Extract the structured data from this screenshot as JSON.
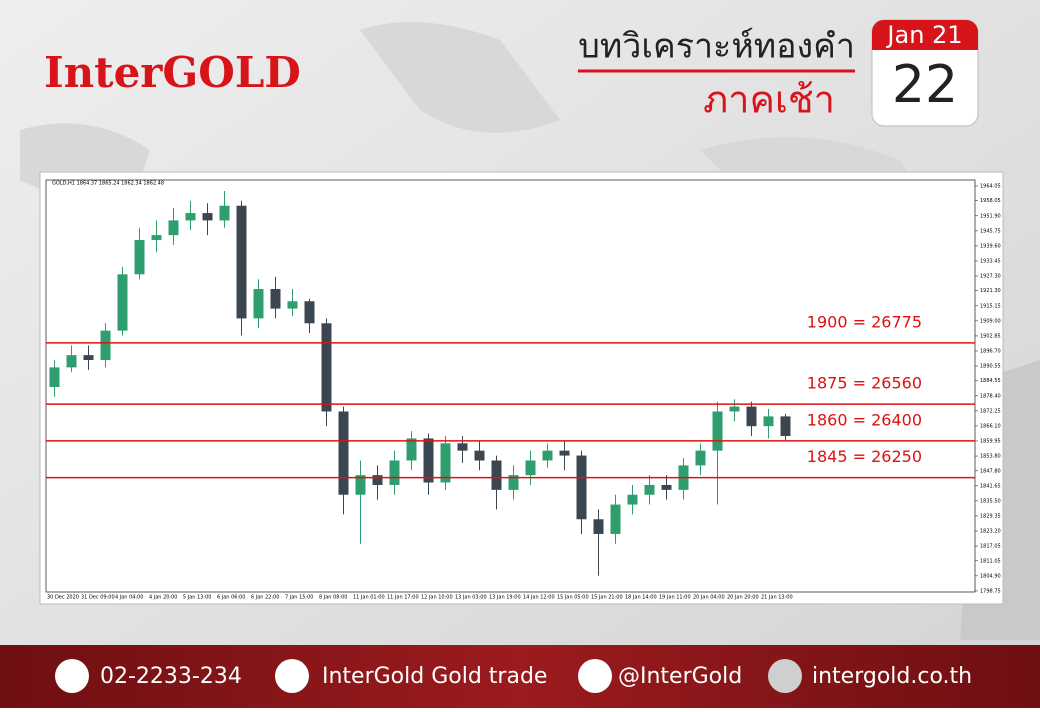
{
  "header": {
    "logo": "InterGOLD",
    "title": "บทวิเคราะห์ทองคำ",
    "subtitle": "ภาคเช้า",
    "month": "Jan 21",
    "day": "22"
  },
  "chart_data": {
    "type": "candlestick",
    "title": "GOLD,H1 1864.37 1865.24 1862.34 1862.48",
    "categories": [
      "30 Dec 2020",
      null,
      "31 Dec 09:00",
      null,
      "4 Jan 04:00",
      null,
      "4 Jan 20:00",
      null,
      "5 Jan 13:00",
      null,
      "6 Jan 06:00",
      null,
      "6 Jan 22:00",
      null,
      "7 Jan 15:00",
      null,
      "8 Jan 08:00",
      null,
      "11 Jan 01:00",
      null,
      "11 Jan 17:00",
      null,
      "12 Jan 10:00",
      null,
      "13 Jan 03:00",
      null,
      "13 Jan 19:00",
      null,
      "14 Jan 12:00",
      null,
      "15 Jan 05:00",
      null,
      "15 Jan 21:00",
      null,
      "18 Jan 14:00",
      null,
      "19 Jan 11:00",
      null,
      "20 Jan 04:00",
      null,
      "20 Jan 20:00",
      null,
      "21 Jan 13:00",
      null
    ],
    "open": [
      1882,
      1890,
      1895,
      1893,
      1905,
      1928,
      1942,
      1944,
      1950,
      1953,
      1950,
      1956,
      1910,
      1922,
      1914,
      1917,
      1908,
      1872,
      1838,
      1846,
      1842,
      1852,
      1861,
      1843,
      1859,
      1856,
      1852,
      1840,
      1846,
      1852,
      1856,
      1854,
      1828,
      1822,
      1834,
      1838,
      1842,
      1840,
      1850,
      1856,
      1872,
      1874,
      1866,
      1870
    ],
    "high": [
      1893,
      1899,
      1899,
      1908,
      1931,
      1947,
      1950,
      1955,
      1958,
      1957,
      1962,
      1958,
      1926,
      1927,
      1922,
      1918,
      1910,
      1874,
      1852,
      1850,
      1856,
      1864,
      1863,
      1862,
      1862,
      1860,
      1854,
      1850,
      1856,
      1859,
      1860,
      1856,
      1832,
      1838,
      1842,
      1846,
      1846,
      1853,
      1859,
      1876,
      1877,
      1876,
      1873,
      1871
    ],
    "low": [
      1878,
      1888,
      1889,
      1890,
      1903,
      1926,
      1937,
      1940,
      1946,
      1944,
      1947,
      1903,
      1906,
      1910,
      1911,
      1904,
      1866,
      1830,
      1818,
      1836,
      1838,
      1848,
      1838,
      1840,
      1851,
      1848,
      1832,
      1836,
      1842,
      1849,
      1848,
      1822,
      1805,
      1818,
      1830,
      1834,
      1836,
      1836,
      1846,
      1834,
      1868,
      1862,
      1861,
      1860
    ],
    "close": [
      1890,
      1895,
      1893,
      1905,
      1928,
      1942,
      1944,
      1950,
      1953,
      1950,
      1956,
      1910,
      1922,
      1914,
      1917,
      1908,
      1872,
      1838,
      1846,
      1842,
      1852,
      1861,
      1843,
      1859,
      1856,
      1852,
      1840,
      1846,
      1852,
      1856,
      1854,
      1828,
      1822,
      1834,
      1838,
      1842,
      1840,
      1850,
      1856,
      1872,
      1874,
      1866,
      1870,
      1862
    ],
    "up_color": "#2e9e6e",
    "down_color": "#3b4650",
    "ylim": [
      1798.3,
      1966.5
    ],
    "yticks": [
      1964.05,
      1958.05,
      {
        "value": 1951.9,
        "label": "1951.90"
      },
      1945.75,
      {
        "value": 1939.6,
        "label": "1939.60"
      },
      1933.45,
      {
        "value": 1927.3,
        "label": "1927.30"
      },
      {
        "value": 1921.3,
        "label": "1921.30"
      },
      1915.15,
      {
        "value": 1909,
        "label": "1909.00"
      },
      1902.85,
      {
        "value": 1896.7,
        "label": "1896.70"
      },
      1890.55,
      1884.55,
      {
        "value": 1878.4,
        "label": "1878.40"
      },
      1872.25,
      {
        "value": 1866.1,
        "label": "1866.10"
      },
      1859.95,
      {
        "value": 1853.8,
        "label": "1853.80"
      },
      {
        "value": 1847.8,
        "label": "1847.80"
      },
      1841.65,
      {
        "value": 1835.5,
        "label": "1835.50"
      },
      1829.35,
      {
        "value": 1823.2,
        "label": "1823.20"
      },
      1817.05,
      1811.05,
      {
        "value": 1804.9,
        "label": "1804.90"
      },
      1798.75
    ],
    "levels": [
      {
        "value": 1900,
        "label": "1900 = 26775"
      },
      {
        "value": 1875,
        "label": "1875 = 26560"
      },
      {
        "value": 1860,
        "label": "1860 = 26400"
      },
      {
        "value": 1845,
        "label": "1845 = 26250"
      }
    ],
    "level_color": "#e01010"
  },
  "footer": {
    "phone": "02-2233-234",
    "facebook": "InterGold Gold trade",
    "line": "@InterGold",
    "web": "intergold.co.th"
  }
}
